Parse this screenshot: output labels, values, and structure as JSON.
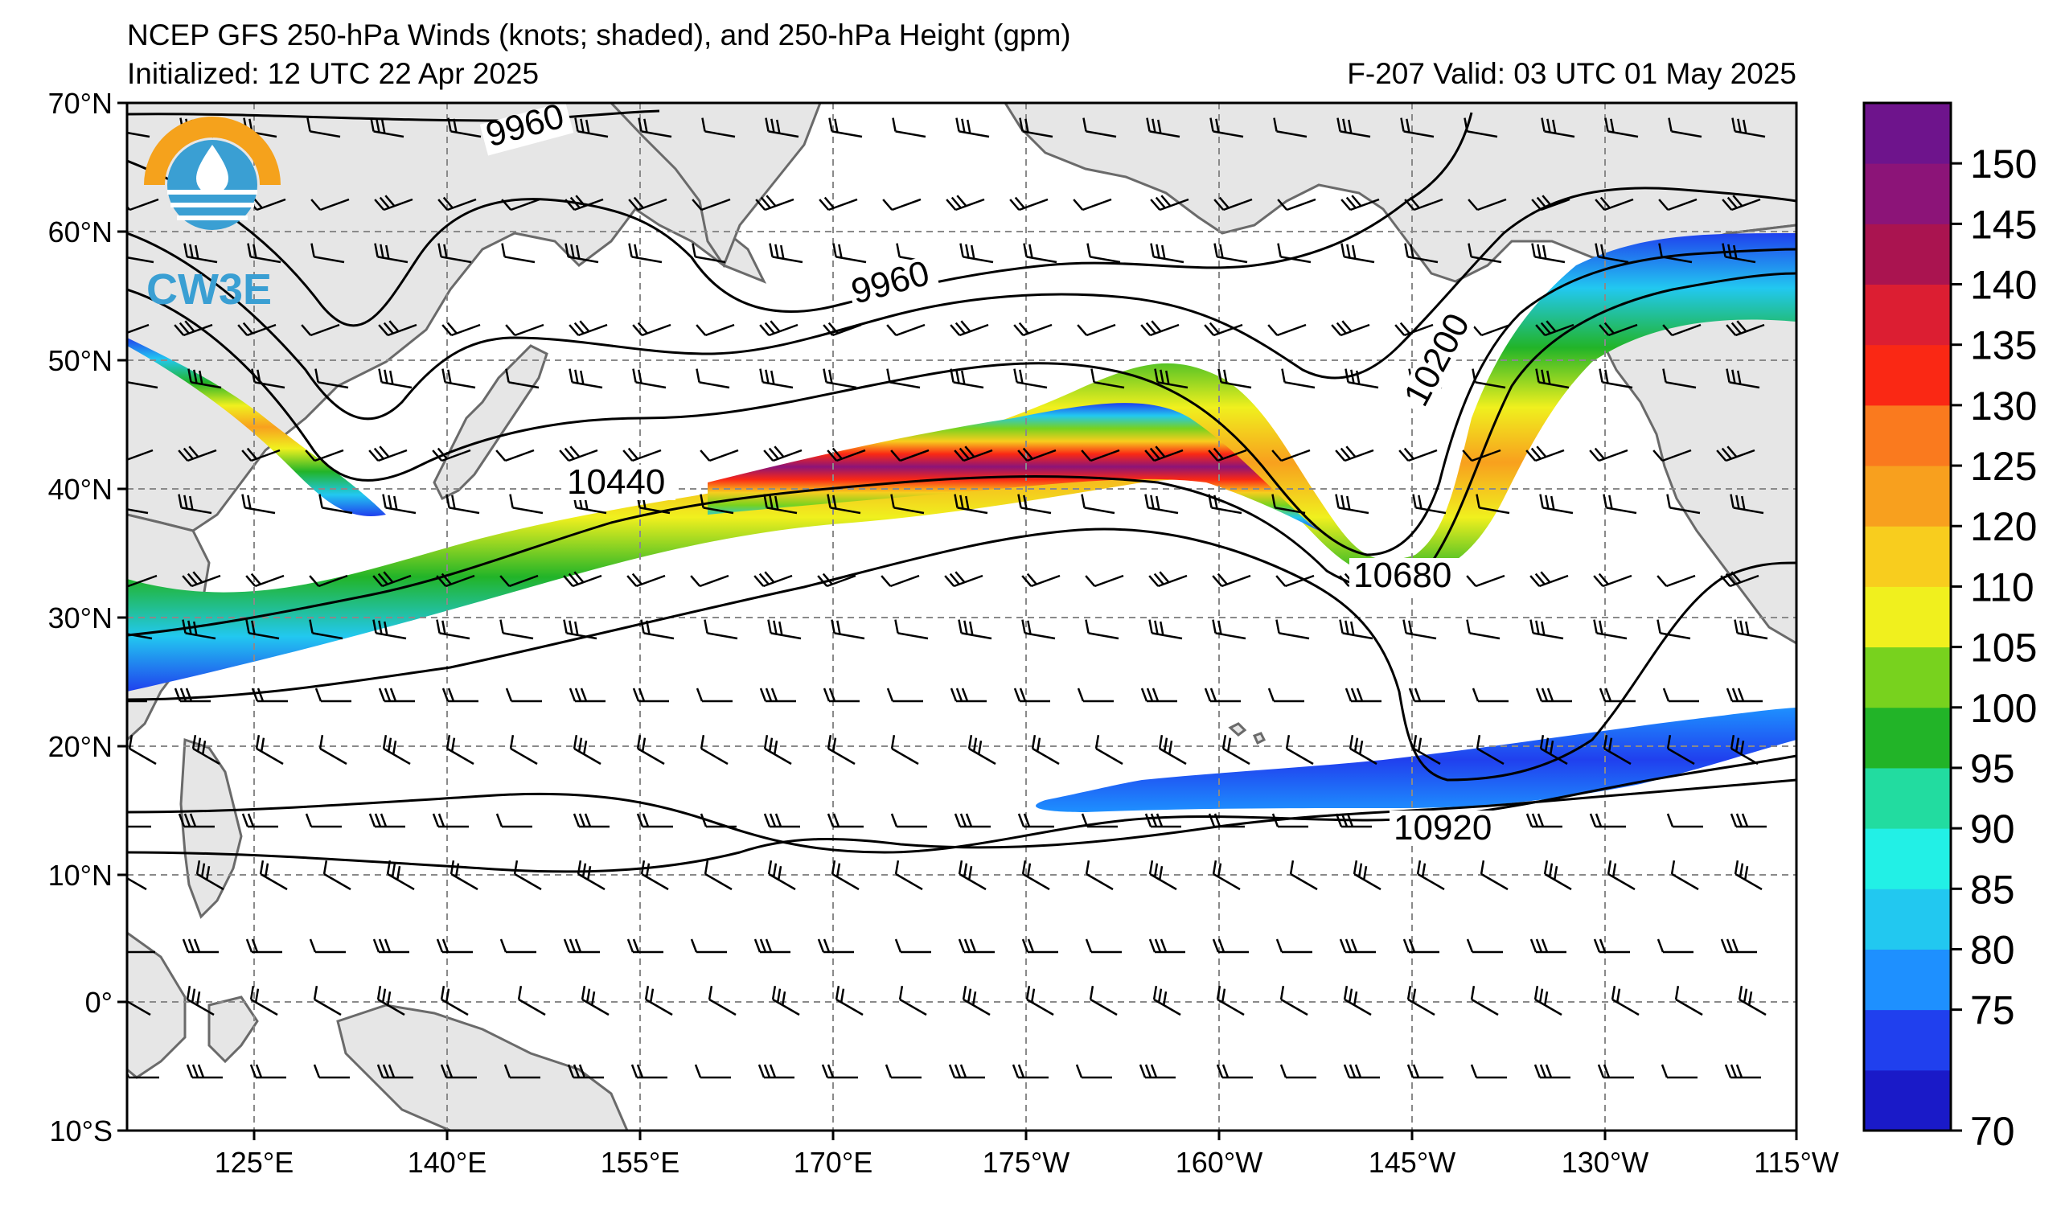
{
  "title": {
    "line1": "NCEP GFS 250-hPa Winds (knots; shaded), and 250-hPa Height (gpm)",
    "initialized": "Initialized: 12 UTC 22 Apr 2025",
    "valid": "F-207  Valid: 03 UTC 01 May 2025"
  },
  "logo": {
    "text": "CW3E",
    "icon": "cw3e-water-drop-sun-logo"
  },
  "axes": {
    "lat_labels": [
      "70°N",
      "60°N",
      "50°N",
      "40°N",
      "30°N",
      "20°N",
      "10°N",
      "0°",
      "10°S"
    ],
    "lon_labels": [
      "125°E",
      "140°E",
      "155°E",
      "170°E",
      "175°W",
      "160°W",
      "145°W",
      "130°W",
      "115°W"
    ]
  },
  "contour_labels": [
    "9960",
    "9960",
    "10200",
    "10440",
    "10680",
    "10920"
  ],
  "colorbar": {
    "ticks": [
      "150",
      "145",
      "140",
      "135",
      "130",
      "125",
      "120",
      "110",
      "105",
      "100",
      "95",
      "90",
      "85",
      "80",
      "75",
      "70"
    ],
    "colors": [
      "#1a1ac8",
      "#2040ee",
      "#1e90ff",
      "#22c8f0",
      "#22f0e6",
      "#22dca0",
      "#22b428",
      "#78d21e",
      "#f0f01e",
      "#f8cd1e",
      "#f8a01e",
      "#fa7a1e",
      "#fa2814",
      "#dc1e32",
      "#aa1450",
      "#8c1478",
      "#6e148c"
    ]
  },
  "colors": {
    "land": "#e6e6e6",
    "coast": "#6a6a6a",
    "grid": "#8a8a8a",
    "contour": "#000000",
    "barb": "#000000"
  }
}
